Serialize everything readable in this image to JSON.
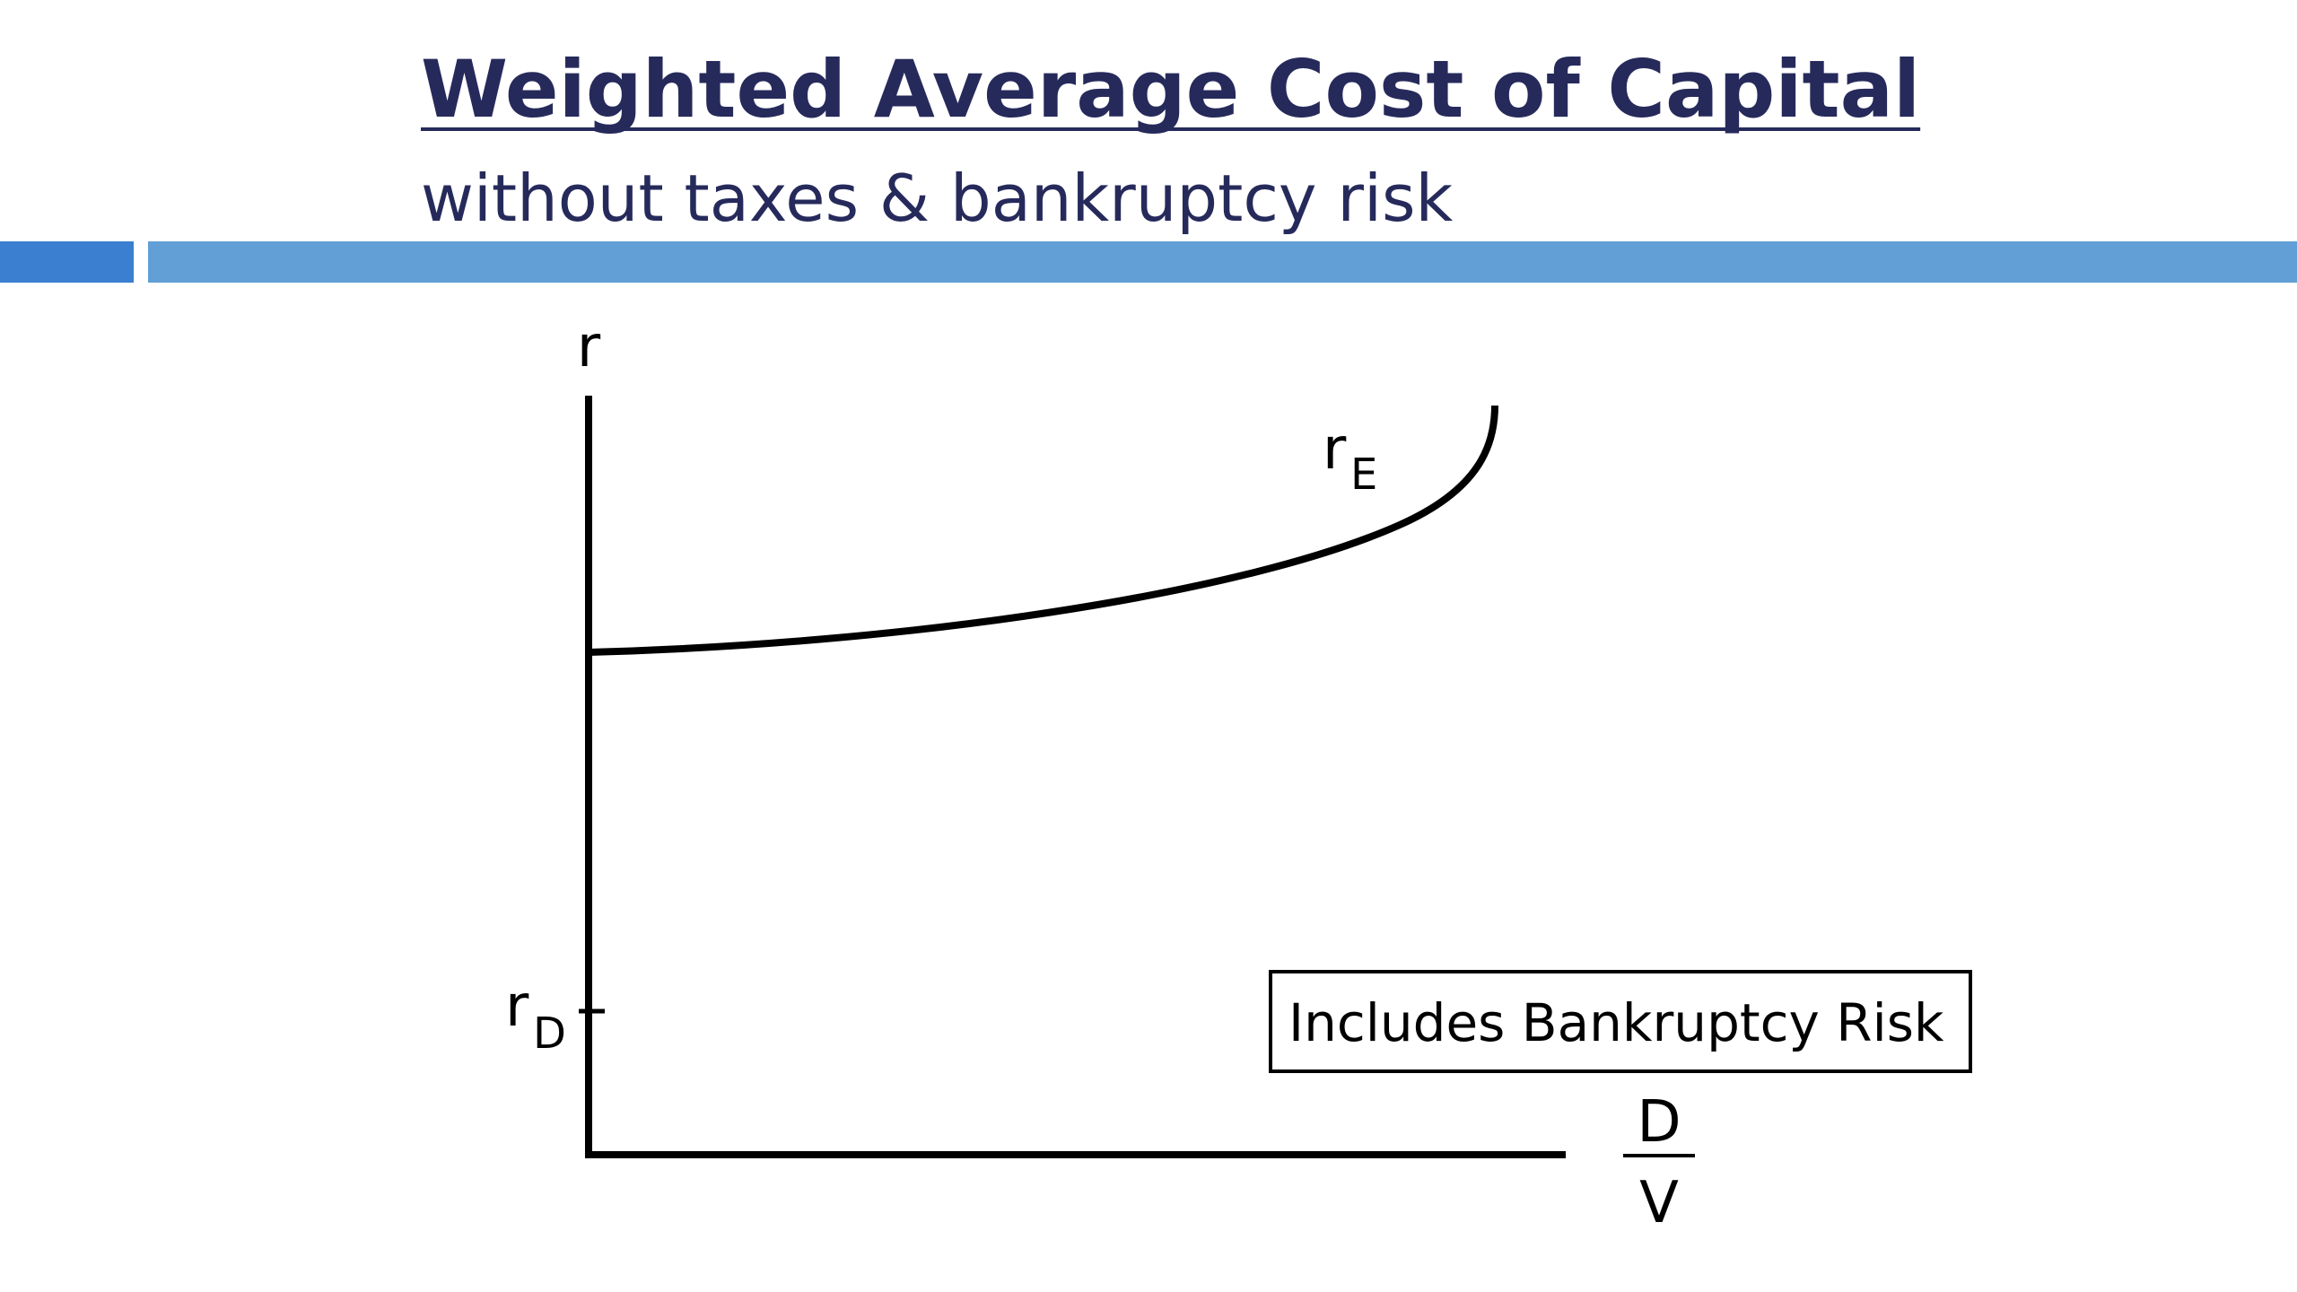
{
  "header": {
    "title": "Weighted Average Cost of Capital",
    "subtitle": "without taxes & bankruptcy risk"
  },
  "diagram": {
    "y_axis_label": "r",
    "curve_label": {
      "base": "r",
      "sub": "E"
    },
    "tick_label": {
      "base": "r",
      "sub": "D"
    },
    "x_axis_label": {
      "numerator": "D",
      "denominator": "V"
    },
    "note": "Includes Bankruptcy Risk"
  }
}
